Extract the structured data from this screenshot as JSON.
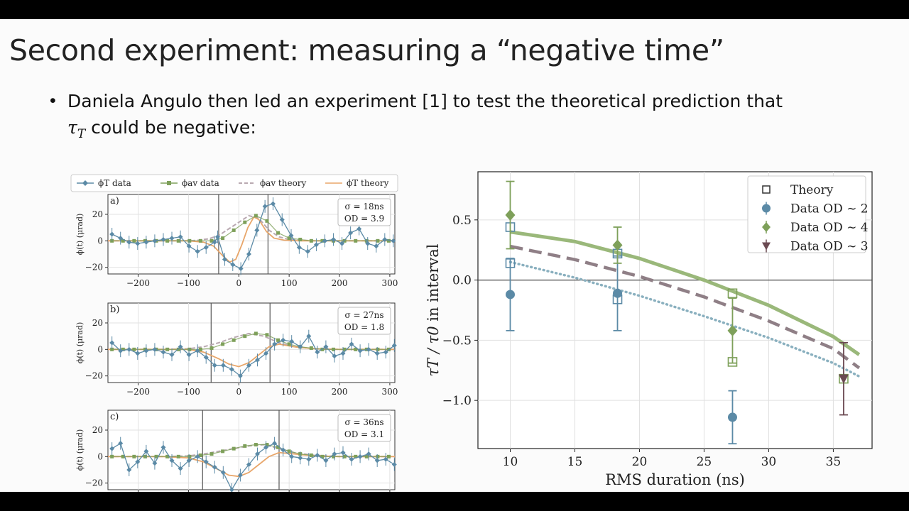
{
  "slide": {
    "title": "Second experiment: measuring a “negative time”",
    "bullet_line1": "Daniela Angulo then led an experiment [1] to test the theoretical prediction that",
    "bullet_line2_symbol": "τ",
    "bullet_line2_subscript": "T",
    "bullet_line2_rest": " could be negative:"
  },
  "colors": {
    "blue": "#5b8aa6",
    "green": "#7ea05a",
    "green_line": "#9ab87a",
    "mauve": "#8f7f86",
    "brown": "#6b4a52",
    "orange": "#e8a66a",
    "gray_dash": "#b9a9b1",
    "dotted": "#8ab0bf"
  },
  "chart_data": [
    {
      "type": "line",
      "panels": "time-trace panels a, b, c",
      "legend": [
        "ϕT data",
        "ϕav data",
        "ϕav theory",
        "ϕT theory"
      ],
      "ylabel": "ϕ(t) (μrad)",
      "xlim": [
        -260,
        310
      ],
      "ylim": [
        -25,
        35
      ],
      "xticks": [
        -200,
        -100,
        0,
        100,
        200,
        300
      ],
      "yticks": [
        -20,
        0,
        20
      ],
      "subplots": [
        {
          "label": "a)",
          "info_sigma": "σ = 18ns",
          "info_od": "OD = 3.9",
          "vlines": [
            -40,
            58
          ],
          "phiT_data": {
            "x": [
              -252,
              -235,
              -218,
              -201,
              -184,
              -167,
              -150,
              -133,
              -116,
              -99,
              -82,
              -65,
              -48,
              -42,
              -28,
              -12,
              4,
              20,
              36,
              52,
              68,
              86,
              104,
              120,
              137,
              154,
              171,
              188,
              205,
              222,
              239,
              256,
              273,
              290,
              307
            ],
            "y": [
              5,
              2,
              -1,
              -2,
              -1,
              0,
              1,
              2,
              3,
              -4,
              -8,
              -5,
              -1,
              3,
              -14,
              -18,
              -21,
              -10,
              8,
              26,
              28,
              16,
              4,
              -5,
              -8,
              -3,
              0,
              1,
              -2,
              6,
              9,
              -2,
              -4,
              1,
              0
            ]
          },
          "phiAV_data": {
            "x": [
              -252,
              -230,
              -208,
              -186,
              -164,
              -142,
              -120,
              -98,
              -76,
              -54,
              -32,
              -10,
              12,
              34,
              56,
              78,
              100,
              122,
              144,
              166,
              188,
              210,
              232,
              254,
              276,
              298
            ],
            "y": [
              0,
              0,
              0,
              0,
              0,
              0,
              0,
              0,
              0,
              0,
              2,
              8,
              14,
              19,
              15,
              6,
              2,
              1,
              0,
              0,
              0,
              0,
              0,
              0,
              0,
              0
            ]
          },
          "phiAV_theory": {
            "x": [
              -260,
              -200,
              -150,
              -100,
              -80,
              -60,
              -40,
              -20,
              0,
              20,
              40,
              60,
              80,
              100,
              150,
              200,
              250,
              310
            ],
            "y": [
              0,
              0,
              0,
              0,
              0.5,
              1.5,
              4,
              9,
              14,
              19,
              17,
              8,
              3,
              1,
              0,
              0,
              0,
              0
            ]
          },
          "phiT_theory": {
            "x": [
              -260,
              -200,
              -150,
              -100,
              -70,
              -50,
              -30,
              -18,
              -6,
              6,
              18,
              30,
              40,
              55,
              70,
              90,
              120,
              150,
              200,
              310
            ],
            "y": [
              0,
              0,
              0,
              0,
              -1,
              -4,
              -12,
              -16,
              -14,
              -3,
              10,
              18,
              16,
              7,
              2,
              0.5,
              0,
              0,
              0,
              0
            ]
          }
        },
        {
          "label": "b)",
          "info_sigma": "σ = 27ns",
          "info_od": "OD = 1.8",
          "vlines": [
            -55,
            62
          ],
          "phiT_data": {
            "x": [
              -252,
              -235,
              -218,
              -201,
              -184,
              -167,
              -150,
              -133,
              -116,
              -99,
              -82,
              -65,
              -48,
              -31,
              -14,
              3,
              20,
              37,
              54,
              71,
              88,
              105,
              122,
              139,
              156,
              173,
              190,
              207,
              224,
              241,
              258,
              275,
              292,
              309
            ],
            "y": [
              5,
              -1,
              0,
              -3,
              -1,
              0,
              -2,
              -4,
              2,
              -4,
              -1,
              -6,
              -12,
              -12,
              -15,
              -20,
              -12,
              -8,
              -3,
              4,
              7,
              6,
              2,
              10,
              -2,
              2,
              -5,
              -3,
              4,
              -1,
              0,
              -3,
              -2,
              3
            ]
          },
          "phiAV_data": {
            "x": [
              -252,
              -230,
              -208,
              -186,
              -164,
              -142,
              -120,
              -98,
              -76,
              -54,
              -32,
              -10,
              12,
              34,
              56,
              78,
              100,
              122,
              144,
              166,
              188,
              210,
              232,
              254,
              276,
              298
            ],
            "y": [
              0,
              0,
              0,
              0,
              0,
              0,
              0,
              0,
              0,
              1,
              4,
              7,
              10,
              12,
              11,
              7,
              4,
              2,
              1,
              0,
              0,
              0,
              0,
              0,
              0,
              0
            ]
          },
          "phiAV_theory": {
            "x": [
              -260,
              -200,
              -150,
              -100,
              -70,
              -40,
              -10,
              20,
              50,
              80,
              110,
              150,
              200,
              310
            ],
            "y": [
              0,
              0,
              0,
              0.5,
              2,
              5,
              9,
              12,
              10,
              5,
              2,
              0.5,
              0,
              0
            ]
          },
          "phiT_theory": {
            "x": [
              -260,
              -200,
              -150,
              -100,
              -70,
              -40,
              -20,
              0,
              20,
              40,
              60,
              80,
              110,
              150,
              200,
              310
            ],
            "y": [
              0,
              0,
              0,
              0,
              -2,
              -7,
              -11,
              -13,
              -10,
              -4,
              2,
              4,
              2,
              0.5,
              0,
              0
            ]
          }
        },
        {
          "label": "c)",
          "info_sigma": "σ = 36ns",
          "info_od": "OD = 3.1",
          "vlines": [
            -72,
            80
          ],
          "phiT_data": {
            "x": [
              -252,
              -235,
              -218,
              -201,
              -184,
              -167,
              -150,
              -133,
              -116,
              -99,
              -82,
              -65,
              -48,
              -31,
              -14,
              3,
              20,
              37,
              54,
              71,
              88,
              105,
              122,
              139,
              156,
              173,
              190,
              207,
              224,
              241,
              258,
              275,
              292,
              309
            ],
            "y": [
              6,
              10,
              -10,
              -4,
              4,
              -5,
              7,
              -3,
              -9,
              -3,
              0,
              -4,
              -8,
              -12,
              -25,
              -14,
              -6,
              2,
              7,
              10,
              5,
              0,
              -1,
              -2,
              1,
              -3,
              2,
              3,
              -2,
              0,
              2,
              -3,
              -2,
              -6
            ]
          },
          "phiAV_data": {
            "x": [
              -252,
              -230,
              -208,
              -186,
              -164,
              -142,
              -120,
              -98,
              -76,
              -54,
              -32,
              -10,
              12,
              34,
              56,
              78,
              100,
              122,
              144,
              166,
              188,
              210,
              232,
              254,
              276,
              298
            ],
            "y": [
              0,
              0,
              0,
              0,
              0,
              0,
              0,
              0,
              1,
              2,
              4,
              6,
              8,
              9,
              9,
              7,
              4,
              2,
              1,
              0,
              0,
              0,
              0,
              0,
              0,
              0
            ]
          },
          "phiAV_theory": {
            "x": [
              -260,
              -200,
              -150,
              -100,
              -70,
              -40,
              -10,
              20,
              50,
              80,
              110,
              150,
              200,
              310
            ],
            "y": [
              0,
              0,
              0,
              0.5,
              2,
              4,
              6,
              8,
              9,
              6,
              3,
              1,
              0,
              0
            ]
          },
          "phiT_theory": {
            "x": [
              -260,
              -200,
              -150,
              -100,
              -70,
              -40,
              -20,
              0,
              20,
              40,
              60,
              80,
              110,
              150,
              200,
              310
            ],
            "y": [
              0,
              0,
              0,
              -1,
              -4,
              -10,
              -14,
              -15,
              -12,
              -6,
              0,
              3,
              2,
              0.5,
              0,
              0
            ]
          }
        }
      ]
    },
    {
      "type": "scatter",
      "xlabel": "RMS duration (ns)",
      "ylabel_main": "τT / τ0",
      "ylabel_suffix": "in interval",
      "xlim": [
        7.5,
        38
      ],
      "ylim": [
        -1.4,
        0.9
      ],
      "xticks": [
        10,
        15,
        20,
        25,
        30,
        35
      ],
      "yticks": [
        0.5,
        0.0,
        -0.5,
        -1.0
      ],
      "xtick_labels": [
        "10",
        "15",
        "20",
        "25",
        "30",
        "35"
      ],
      "ytick_labels": [
        "0.5",
        "0.0",
        "−0.5",
        "−1.0"
      ],
      "legend": [
        "Theory",
        "Data OD ∼ 2",
        "Data OD ∼ 4",
        "Data OD ∼ 3"
      ],
      "theory_points": {
        "x": [
          10,
          10,
          18.3,
          18.3,
          27.2,
          27.2,
          35.8
        ],
        "y": [
          0.44,
          0.14,
          0.22,
          -0.16,
          -0.11,
          -0.68,
          -0.82
        ]
      },
      "data_od2": {
        "x": [
          10,
          18.3,
          27.2
        ],
        "y": [
          -0.12,
          -0.11,
          -1.14
        ],
        "err": [
          0.3,
          0.31,
          0.22
        ]
      },
      "data_od4": {
        "x": [
          10,
          18.3,
          27.2
        ],
        "y": [
          0.54,
          0.29,
          -0.42
        ],
        "err": [
          0.28,
          0.15,
          0.27
        ]
      },
      "data_od3": {
        "x": [
          35.8
        ],
        "y": [
          -0.82
        ],
        "err": [
          0.3
        ]
      },
      "curve_od4": {
        "x": [
          10,
          15,
          20,
          25,
          30,
          35,
          37
        ],
        "y": [
          0.4,
          0.32,
          0.18,
          0.0,
          -0.21,
          -0.47,
          -0.62
        ]
      },
      "curve_od3": {
        "x": [
          10,
          15,
          20,
          25,
          30,
          35,
          37
        ],
        "y": [
          0.28,
          0.17,
          0.03,
          -0.14,
          -0.34,
          -0.57,
          -0.73
        ]
      },
      "curve_od2": {
        "x": [
          10,
          15,
          20,
          25,
          30,
          35,
          37
        ],
        "y": [
          0.15,
          0.02,
          -0.13,
          -0.3,
          -0.48,
          -0.69,
          -0.8
        ]
      }
    }
  ]
}
